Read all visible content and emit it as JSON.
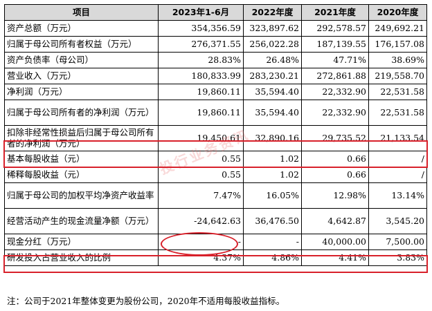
{
  "headers": [
    "项目",
    "2023年1-6月",
    "2022年度",
    "2021年度",
    "2020年度"
  ],
  "rows": [
    {
      "label": "资产总额（万元）",
      "v2023": "354,356.59",
      "v2022": "323,897.62",
      "v2021": "292,578.57",
      "v2020": "249,692.21"
    },
    {
      "label": "归属于母公司所有者权益（万元）",
      "v2023": "276,371.55",
      "v2022": "256,022.28",
      "v2021": "187,139.55",
      "v2020": "176,157.08"
    },
    {
      "label": "资产负债率（母公司）",
      "v2023": "28.83%",
      "v2022": "26.48%",
      "v2021": "47.71%",
      "v2020": "38.69%"
    },
    {
      "label": "营业收入（万元）",
      "v2023": "180,833.99",
      "v2022": "283,230.21",
      "v2021": "272,861.88",
      "v2020": "219,558.70"
    },
    {
      "label": "净利润（万元）",
      "v2023": "19,860.11",
      "v2022": "35,594.40",
      "v2021": "22,332.90",
      "v2020": "22,531.58"
    },
    {
      "label": "归属于母公司所有者的净利润（万元）",
      "v2023": "19,860.11",
      "v2022": "35,594.40",
      "v2021": "22,332.90",
      "v2020": "22,531.58"
    },
    {
      "label": "扣除非经常性损益后归属于母公司所有者的净利润（万元）",
      "v2023": "19,450.61",
      "v2022": "32,890.16",
      "v2021": "29,735.52",
      "v2020": "21,133.54"
    },
    {
      "label": "基本每股收益（元）",
      "v2023": "0.55",
      "v2022": "1.02",
      "v2021": "0.66",
      "v2020": "/"
    },
    {
      "label": "稀释每股收益（元）",
      "v2023": "0.55",
      "v2022": "1.02",
      "v2021": "0.66",
      "v2020": "/"
    },
    {
      "label": "归属于母公司的加权平均净资产收益率",
      "v2023": "7.47%",
      "v2022": "16.05%",
      "v2021": "12.98%",
      "v2020": "13.14%"
    },
    {
      "label": "经营活动产生的现金流量净额（万元）",
      "v2023": "-24,642.63",
      "v2022": "36,476.50",
      "v2021": "4,642.87",
      "v2020": "3,545.20"
    },
    {
      "label": "现金分红（万元）",
      "v2023": "-",
      "v2022": "-",
      "v2021": "40,000.00",
      "v2020": "7,500.00"
    },
    {
      "label": "研发投入占营业收入的比例",
      "v2023": "4.37%",
      "v2022": "4.86%",
      "v2021": "4.41%",
      "v2020": "3.83%"
    }
  ],
  "watermark": "投行业务资讯",
  "note": "注：公司于2021年整体变更为股份公司，2020年不适用每股收益指标。",
  "highlight_color": "#d8202a"
}
